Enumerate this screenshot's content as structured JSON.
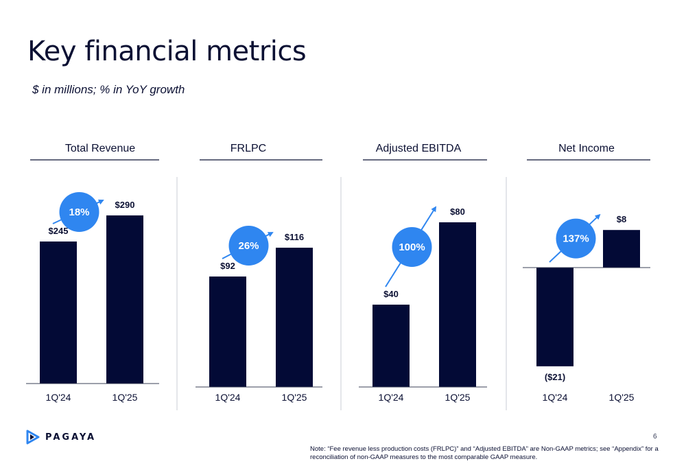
{
  "page": {
    "title": "Key financial metrics",
    "subtitle": "$ in millions; % in YoY growth",
    "page_number": "6",
    "note": "Note: “Fee revenue less production costs (FRLPC)” and “Adjusted EBITDA” are Non-GAAP metrics; see “Appendix” for a reconciliation of non-GAAP measures to the most comparable GAAP measure.",
    "logo_text": "PAGAYA"
  },
  "colors": {
    "bar": "#030a36",
    "accent": "#2f86f0",
    "text": "#0b1033"
  },
  "chart_data": [
    {
      "type": "bar",
      "title": "Total Revenue",
      "categories": [
        "1Q'24",
        "1Q'25"
      ],
      "values": [
        245,
        290
      ],
      "value_labels": [
        "$245",
        "$290"
      ],
      "growth": "18%"
    },
    {
      "type": "bar",
      "title": "FRLPC",
      "categories": [
        "1Q'24",
        "1Q'25"
      ],
      "values": [
        92,
        116
      ],
      "value_labels": [
        "$92",
        "$116"
      ],
      "growth": "26%"
    },
    {
      "type": "bar",
      "title": "Adjusted EBITDA",
      "categories": [
        "1Q'24",
        "1Q'25"
      ],
      "values": [
        40,
        80
      ],
      "value_labels": [
        "$40",
        "$80"
      ],
      "growth": "100%"
    },
    {
      "type": "bar",
      "title": "Net Income",
      "categories": [
        "1Q'24",
        "1Q'25"
      ],
      "values": [
        -21,
        8
      ],
      "value_labels": [
        "($21)",
        "$8"
      ],
      "growth": "137%"
    }
  ]
}
